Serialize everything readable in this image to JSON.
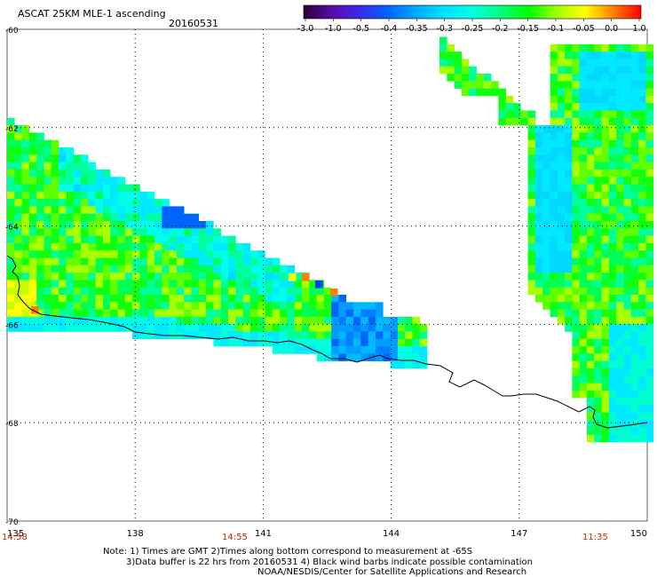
{
  "header": {
    "title": "ASCAT 25KM MLE-1 ascending",
    "date": "20160531"
  },
  "colorbar": {
    "labels": [
      "-3.0",
      "-1.0",
      "-0.5",
      "-0.4",
      "-0.35",
      "-0.3",
      "-0.25",
      "-0.2",
      "-0.15",
      "-0.1",
      "-0.05",
      "0.0",
      "1.0"
    ],
    "colors": [
      "#2a0030",
      "#5a0aa8",
      "#3a2ae8",
      "#0064ff",
      "#00a8ff",
      "#00e0ff",
      "#00ffe0",
      "#00ff80",
      "#00ff00",
      "#a0ff00",
      "#ffff00",
      "#ff8000",
      "#ff0000"
    ]
  },
  "map": {
    "lon_range": [
      135,
      150
    ],
    "lat_range": [
      -70,
      -60
    ],
    "lon_ticks": [
      "135",
      "138",
      "141",
      "144",
      "147",
      "150"
    ],
    "lat_ticks": [
      "-60",
      "-62",
      "-64",
      "-66",
      "-68",
      "-70"
    ],
    "grid": true
  },
  "times": [
    "14:58",
    "14:55",
    "11:35"
  ],
  "notes": {
    "line1": "Note: 1) Times are GMT 2)Times along bottom correspond to measurement at -65S",
    "line2": "3)Data buffer is 22 hrs from 20160531 4) Black wind barbs indicate possible contamination",
    "line3": "NOAA/NESDIS/Center for Satellite Applications and Research"
  }
}
